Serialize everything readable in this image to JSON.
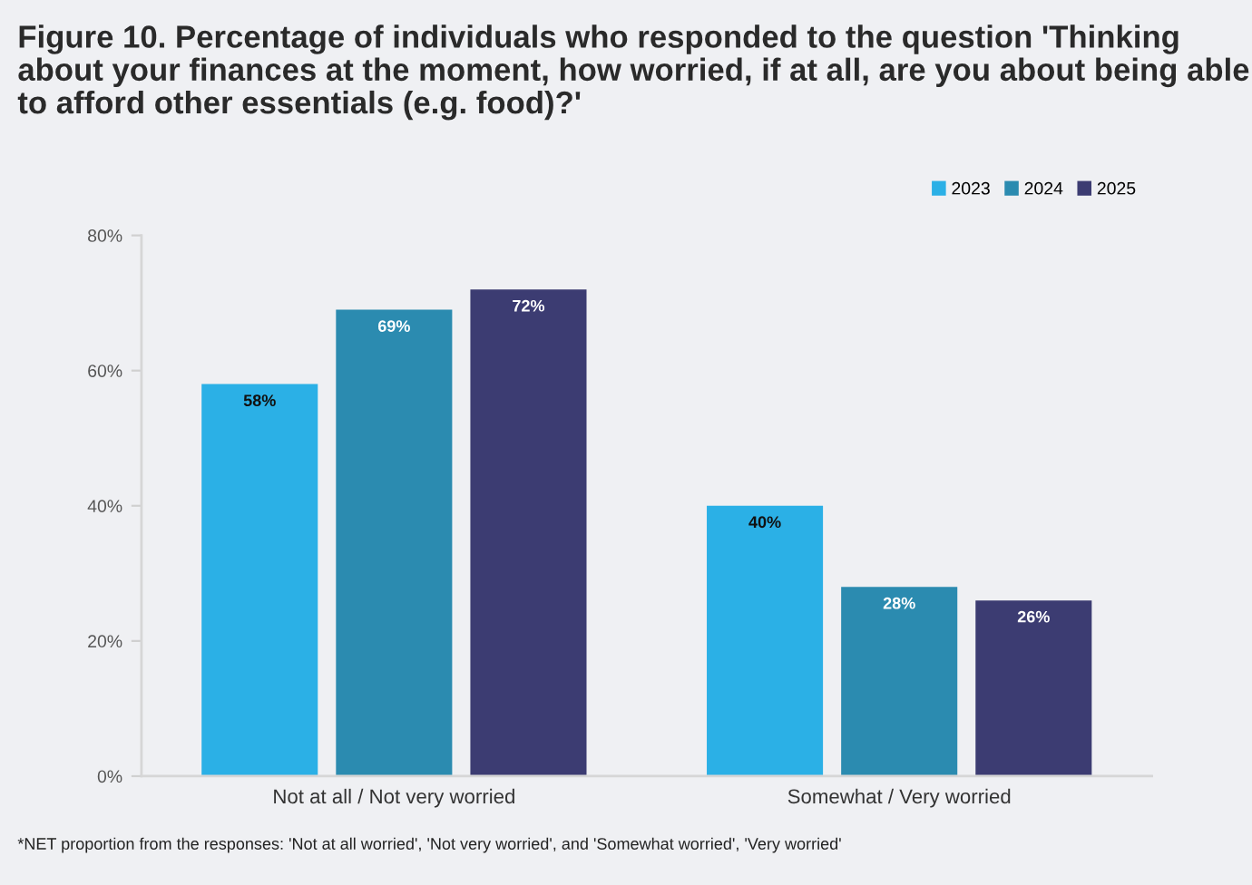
{
  "chart_data": {
    "type": "bar",
    "title": "Figure 10. Percentage of individuals who responded to the question 'Thinking about your finances at the moment, how worried, if at all, are you about being able to afford other essentials (e.g. food)?'",
    "categories": [
      "Not at all / Not very worried",
      "Somewhat / Very worried"
    ],
    "series": [
      {
        "name": "2023",
        "color": "#2bb0e6",
        "values": [
          58,
          40
        ],
        "value_labels": [
          "58%",
          "40%"
        ]
      },
      {
        "name": "2024",
        "color": "#2b8bb0",
        "values": [
          69,
          28
        ],
        "value_labels": [
          "69%",
          "28%"
        ]
      },
      {
        "name": "2025",
        "color": "#3c3c72",
        "values": [
          72,
          26
        ],
        "value_labels": [
          "72%",
          "26%"
        ]
      }
    ],
    "ylim": [
      0,
      80
    ],
    "yticks": [
      {
        "value": 0,
        "label": "0%"
      },
      {
        "value": 20,
        "label": "20%"
      },
      {
        "value": 40,
        "label": "40%"
      },
      {
        "value": 60,
        "label": "60%"
      },
      {
        "value": 80,
        "label": "80%"
      }
    ],
    "grid": false,
    "legend": "top right",
    "annotations": [
      "*NET proportion from the responses: 'Not at all worried', 'Not very worried', and 'Somewhat worried', 'Very worried'"
    ]
  }
}
